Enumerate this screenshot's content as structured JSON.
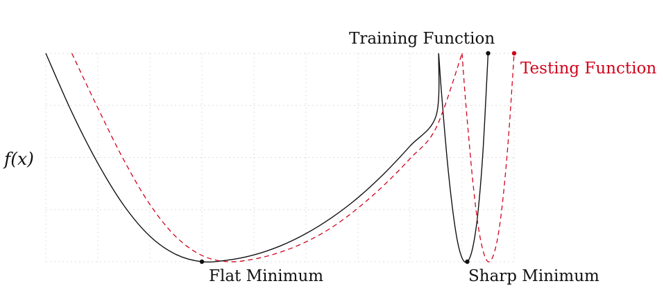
{
  "chart_data": {
    "type": "line",
    "ylabel": "f(x)",
    "xlim": [
      0,
      9
    ],
    "ylim": [
      0,
      4
    ],
    "grid": true,
    "series": [
      {
        "name": "Training Function",
        "color": "#111111",
        "line_style": "solid",
        "x": [
          0,
          0.5,
          1,
          1.5,
          2,
          2.5,
          3,
          3.5,
          4,
          4.5,
          5,
          5.5,
          6,
          6.5,
          7,
          7.5,
          7.55,
          7.6,
          7.7,
          7.8,
          7.9,
          8.0,
          8.1,
          8.2,
          8.3,
          8.4,
          8.5
        ],
        "y": [
          4.0,
          2.87,
          1.89,
          1.08,
          0.49,
          0.14,
          0.0,
          0.03,
          0.13,
          0.3,
          0.54,
          0.85,
          1.23,
          1.69,
          2.22,
          2.8,
          4.0,
          3.3,
          2.1,
          1.15,
          0.45,
          0.07,
          0.0,
          0.25,
          0.9,
          2.1,
          4.0
        ]
      },
      {
        "name": "Testing Function",
        "color": "#d0021b",
        "line_style": "dashed",
        "x": [
          0.5,
          1,
          1.5,
          2,
          2.5,
          3,
          3.5,
          4,
          4.5,
          5,
          5.5,
          6,
          6.5,
          7,
          7.5,
          8,
          8.05,
          8.1,
          8.2,
          8.3,
          8.4,
          8.5,
          8.6,
          8.7,
          8.8,
          8.9,
          9.0
        ],
        "y": [
          4.0,
          2.95,
          1.95,
          1.1,
          0.48,
          0.12,
          0.0,
          0.05,
          0.18,
          0.38,
          0.66,
          1.03,
          1.47,
          1.98,
          2.57,
          4.0,
          3.3,
          2.7,
          1.6,
          0.75,
          0.22,
          0.0,
          0.12,
          0.55,
          1.35,
          2.5,
          4.0
        ]
      }
    ],
    "markers": [
      {
        "series": "Training Function",
        "x": 3,
        "y": 0,
        "color": "#111111"
      },
      {
        "series": "Training Function",
        "x": 8.1,
        "y": 0,
        "color": "#111111"
      },
      {
        "series": "Training Function",
        "x": 8.5,
        "y": 4.0,
        "color": "#111111"
      },
      {
        "series": "Testing Function",
        "x": 9.0,
        "y": 4.0,
        "color": "#d0021b"
      }
    ],
    "annotations": {
      "training": "Training Function",
      "testing": "Testing Function",
      "flat_min": "Flat Minimum",
      "sharp_min": "Sharp Minimum"
    }
  }
}
